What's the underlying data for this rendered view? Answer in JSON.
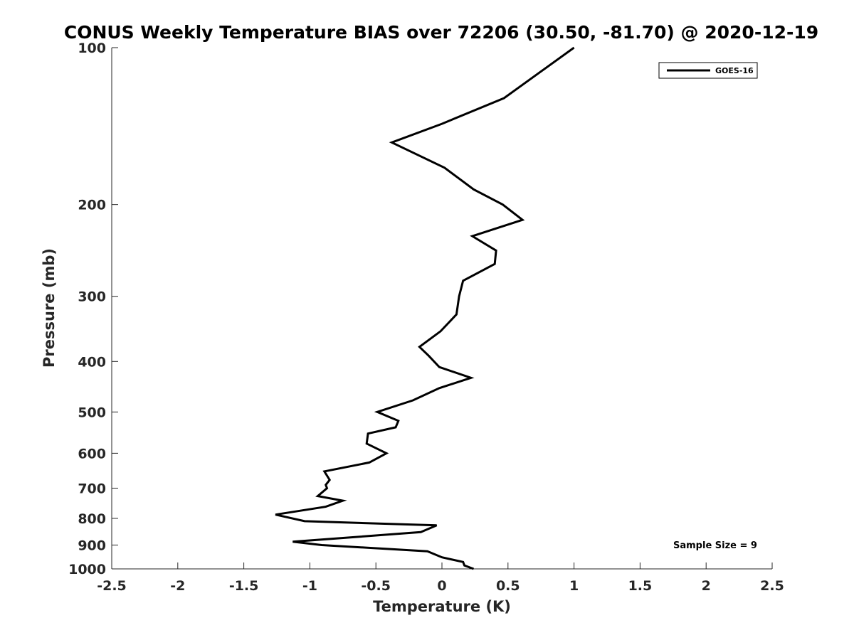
{
  "chart_data": {
    "type": "line",
    "title": "CONUS Weekly Temperature BIAS over 72206 (30.50, -81.70) @ 2020-12-19",
    "xlabel": "Temperature (K)",
    "ylabel": "Pressure (mb)",
    "xlim": [
      -2.5,
      2.5
    ],
    "ylim": [
      1000,
      100
    ],
    "y_scale": "log",
    "x_ticks": [
      "-2.5",
      "-2",
      "-1.5",
      "-1",
      "-0.5",
      "0",
      "0.5",
      "1",
      "1.5",
      "2",
      "2.5"
    ],
    "y_ticks": [
      "100",
      "200",
      "300",
      "400",
      "500",
      "600",
      "700",
      "800",
      "900",
      "1000"
    ],
    "grid": false,
    "legend_position": "top-right",
    "annotation": "Sample Size = 9",
    "series": [
      {
        "name": "GOES-16",
        "color": "#000000",
        "points": [
          {
            "x": 1.0,
            "y": 100
          },
          {
            "x": 0.47,
            "y": 125
          },
          {
            "x": 0.0,
            "y": 140
          },
          {
            "x": -0.38,
            "y": 152
          },
          {
            "x": 0.02,
            "y": 170
          },
          {
            "x": 0.24,
            "y": 187
          },
          {
            "x": 0.46,
            "y": 200
          },
          {
            "x": 0.61,
            "y": 214
          },
          {
            "x": 0.23,
            "y": 230
          },
          {
            "x": 0.41,
            "y": 245
          },
          {
            "x": 0.4,
            "y": 260
          },
          {
            "x": 0.16,
            "y": 280
          },
          {
            "x": 0.13,
            "y": 300
          },
          {
            "x": 0.11,
            "y": 325
          },
          {
            "x": -0.01,
            "y": 350
          },
          {
            "x": -0.17,
            "y": 375
          },
          {
            "x": -0.1,
            "y": 390
          },
          {
            "x": -0.02,
            "y": 410
          },
          {
            "x": 0.22,
            "y": 430
          },
          {
            "x": -0.02,
            "y": 450
          },
          {
            "x": -0.22,
            "y": 475
          },
          {
            "x": -0.49,
            "y": 500
          },
          {
            "x": -0.33,
            "y": 520
          },
          {
            "x": -0.35,
            "y": 535
          },
          {
            "x": -0.56,
            "y": 550
          },
          {
            "x": -0.57,
            "y": 575
          },
          {
            "x": -0.42,
            "y": 600
          },
          {
            "x": -0.55,
            "y": 625
          },
          {
            "x": -0.89,
            "y": 650
          },
          {
            "x": -0.85,
            "y": 675
          },
          {
            "x": -0.88,
            "y": 690
          },
          {
            "x": -0.87,
            "y": 700
          },
          {
            "x": -0.94,
            "y": 725
          },
          {
            "x": -0.75,
            "y": 740
          },
          {
            "x": -0.88,
            "y": 760
          },
          {
            "x": -1.26,
            "y": 787
          },
          {
            "x": -1.04,
            "y": 810
          },
          {
            "x": -0.04,
            "y": 825
          },
          {
            "x": -0.16,
            "y": 850
          },
          {
            "x": -1.13,
            "y": 887
          },
          {
            "x": -0.91,
            "y": 900
          },
          {
            "x": -0.11,
            "y": 925
          },
          {
            "x": 0.0,
            "y": 950
          },
          {
            "x": 0.16,
            "y": 970
          },
          {
            "x": 0.17,
            "y": 985
          },
          {
            "x": 0.24,
            "y": 1000
          }
        ]
      }
    ]
  }
}
